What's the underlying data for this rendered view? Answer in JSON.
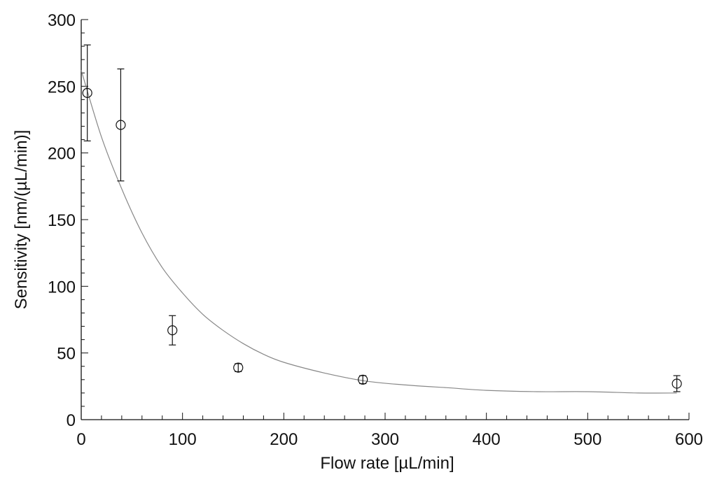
{
  "chart_data": {
    "type": "scatter",
    "title": "",
    "xlabel": "Flow rate [µL/min]",
    "ylabel": "Sensitivity [nm/(µL/min)]",
    "xlim": [
      0,
      600
    ],
    "ylim": [
      0,
      300
    ],
    "x_ticks": [
      0,
      100,
      200,
      300,
      400,
      500,
      600
    ],
    "y_ticks": [
      0,
      50,
      100,
      150,
      200,
      250,
      300
    ],
    "x_tick_labels": [
      "0",
      "100",
      "200",
      "300",
      "400",
      "500",
      "600"
    ],
    "y_tick_labels": [
      "0",
      "50",
      "100",
      "150",
      "200",
      "250",
      "300"
    ],
    "grid": false,
    "legend": "none",
    "series": [
      {
        "marker": "open-circle",
        "x": [
          6,
          39,
          90,
          155,
          278,
          588
        ],
        "y": [
          245,
          221,
          67,
          39,
          30,
          27
        ],
        "error": [
          36,
          42,
          11,
          3,
          3,
          6
        ]
      }
    ],
    "fit": {
      "style": "thin gray curve",
      "x": [
        0,
        20,
        40,
        60,
        80,
        100,
        120,
        140,
        160,
        180,
        200,
        240,
        280,
        320,
        360,
        400,
        450,
        500,
        550,
        588
      ],
      "y": [
        262,
        212,
        173,
        140,
        114,
        95,
        79,
        67,
        57,
        49,
        43,
        35,
        29,
        26,
        24,
        22,
        21,
        21,
        20,
        20
      ]
    },
    "colors": {
      "axis": "#111111",
      "marker": "#111111",
      "fit": "#888888"
    }
  }
}
